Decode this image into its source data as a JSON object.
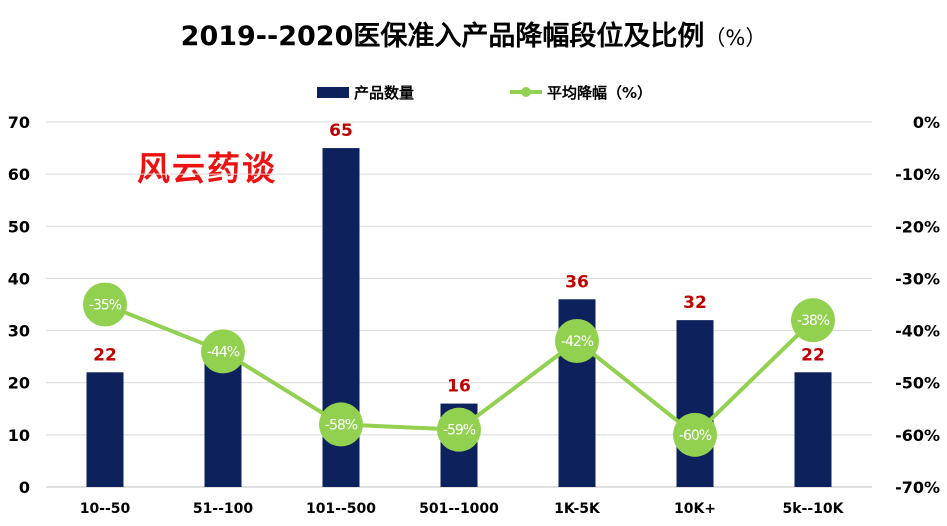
{
  "chart_data": {
    "type": "bar",
    "title": "2019--2020医保准入产品降幅段位及比例",
    "title_unit": "（%）",
    "categories": [
      "10--50",
      "51--100",
      "101--500",
      "501--1000",
      "1K-5K",
      "10K+",
      "5k--10K"
    ],
    "series": [
      {
        "name": "产品数量",
        "type": "bar",
        "axis": "left",
        "color": "#0d215c",
        "values": [
          22,
          24,
          65,
          16,
          36,
          32,
          22
        ],
        "labels": [
          "22",
          "24",
          "65",
          "16",
          "36",
          "32",
          "22"
        ]
      },
      {
        "name": "平均降幅（%）",
        "type": "line",
        "axis": "right",
        "color": "#92d050",
        "values": [
          -35,
          -44,
          -58,
          -59,
          -42,
          -60,
          -38
        ],
        "labels": [
          "-35%",
          "-44%",
          "-58%",
          "-59%",
          "-42%",
          "-60%",
          "-38%"
        ]
      }
    ],
    "y_left": {
      "min": 0,
      "max": 70,
      "ticks": [
        "0",
        "10",
        "20",
        "30",
        "40",
        "50",
        "60",
        "70"
      ]
    },
    "y_right": {
      "min": -70,
      "max": 0,
      "ticks": [
        "-70%",
        "-60%",
        "-50%",
        "-40%",
        "-30%",
        "-20%",
        "-10%",
        "0%"
      ]
    },
    "grid": true,
    "legend_position": "top-center",
    "data_label_color": "#c00000"
  },
  "watermark": "风云药谈"
}
